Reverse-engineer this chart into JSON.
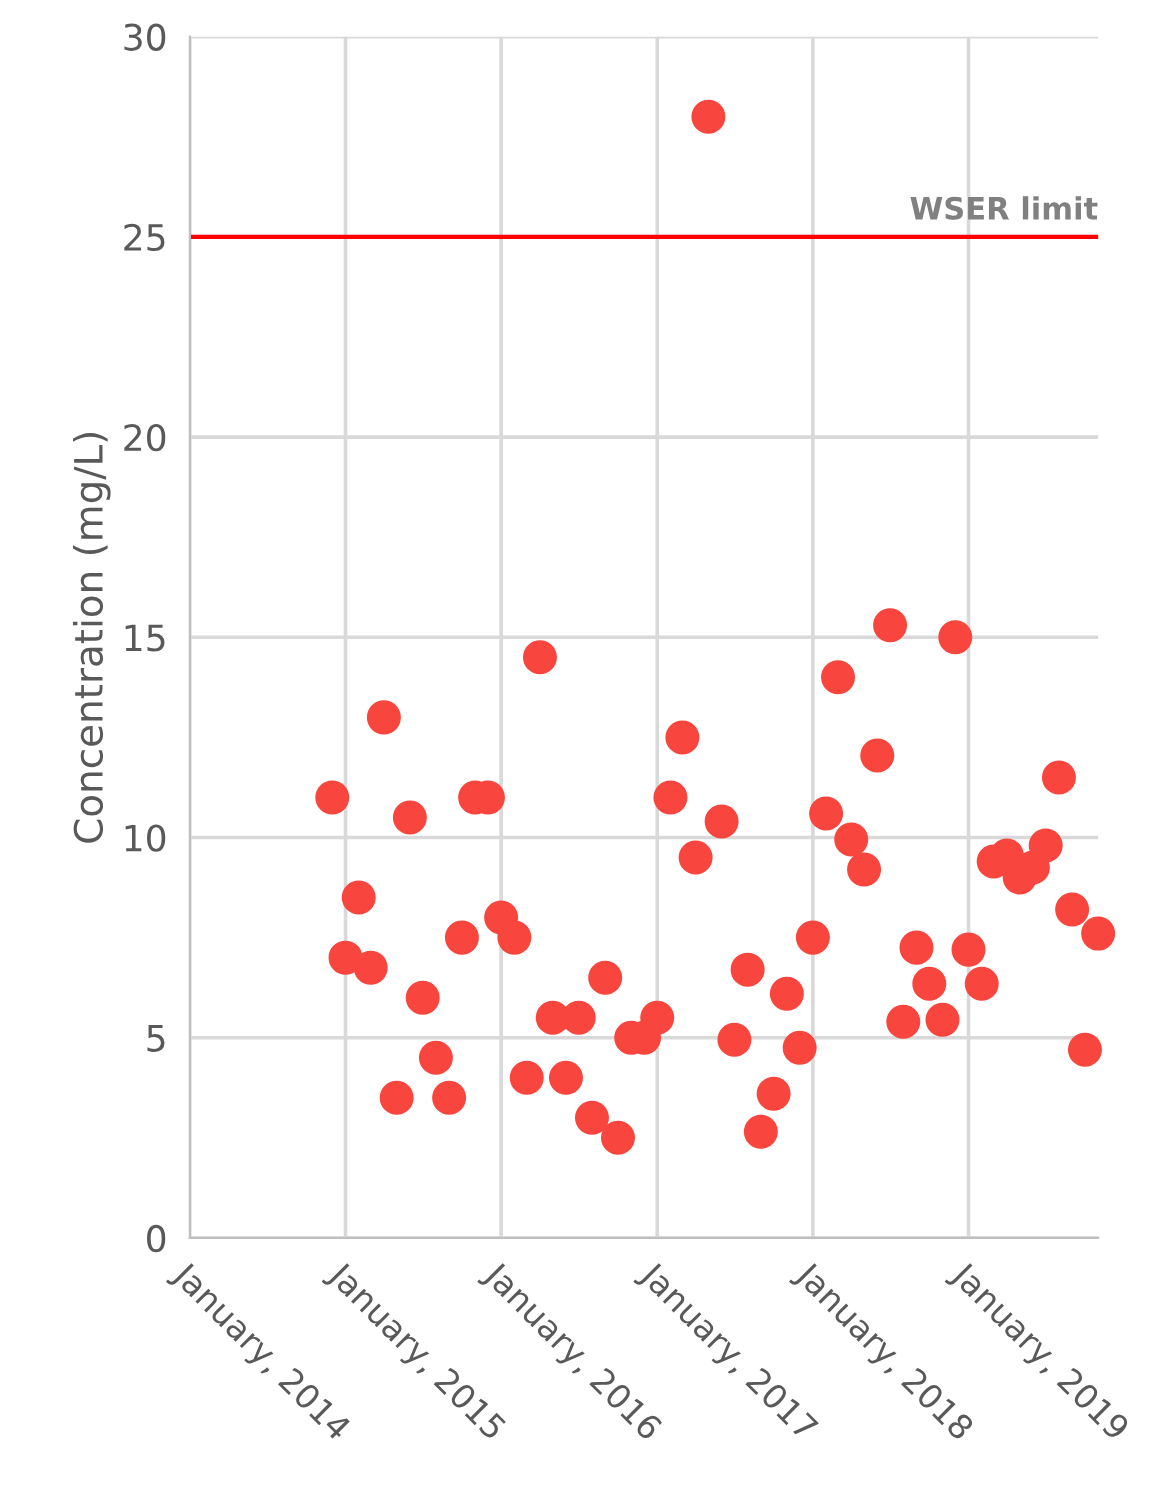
{
  "chart_data": {
    "type": "scatter",
    "ylabel": "Concentration (mg/L)",
    "x": [
      "2014-12",
      "2015-01",
      "2015-02",
      "2015-03",
      "2015-04",
      "2015-05",
      "2015-06",
      "2015-07",
      "2015-08",
      "2015-09",
      "2015-10",
      "2015-11",
      "2015-12",
      "2016-01",
      "2016-02",
      "2016-03",
      "2016-04",
      "2016-05",
      "2016-06",
      "2016-07",
      "2016-08",
      "2016-09",
      "2016-10",
      "2016-11",
      "2016-12",
      "2017-01",
      "2017-02",
      "2017-03",
      "2017-04",
      "2017-05",
      "2017-06",
      "2017-07",
      "2017-08",
      "2017-09",
      "2017-10",
      "2017-11",
      "2017-12",
      "2018-01",
      "2018-02",
      "2018-03",
      "2018-04",
      "2018-05",
      "2018-06",
      "2018-07",
      "2018-08",
      "2018-09",
      "2018-10",
      "2018-11",
      "2018-12",
      "2019-01",
      "2019-02",
      "2019-03",
      "2019-04",
      "2019-05",
      "2019-06",
      "2019-07",
      "2019-08",
      "2019-09",
      "2019-10",
      "2019-11"
    ],
    "series": [
      {
        "color": "#f8463f",
        "values": [
          11.0,
          7.0,
          8.5,
          6.75,
          13.0,
          3.5,
          10.5,
          6.0,
          4.5,
          3.5,
          7.5,
          11.0,
          11.0,
          8.0,
          7.5,
          4.0,
          14.5,
          5.5,
          4.0,
          5.5,
          3.0,
          6.5,
          2.5,
          5.0,
          5.0,
          5.5,
          11.0,
          12.5,
          9.5,
          28.0,
          10.4,
          4.95,
          6.7,
          2.65,
          3.6,
          6.1,
          4.75,
          7.5,
          10.6,
          14.0,
          9.95,
          9.2,
          12.05,
          15.3,
          5.4,
          7.25,
          6.35,
          5.45,
          15.0,
          7.2,
          6.35,
          9.4,
          9.55,
          9.0,
          9.25,
          9.8,
          11.5,
          8.2,
          4.7,
          7.6
        ]
      }
    ],
    "xlim": [
      "2014-01",
      "2019-11"
    ],
    "xticks": [
      {
        "value": "2014-01",
        "label": "January, 2014"
      },
      {
        "value": "2015-01",
        "label": "January, 2015"
      },
      {
        "value": "2016-01",
        "label": "January, 2016"
      },
      {
        "value": "2017-01",
        "label": "January, 2017"
      },
      {
        "value": "2018-01",
        "label": "January, 2018"
      },
      {
        "value": "2019-01",
        "label": "January, 2019"
      }
    ],
    "ylim": [
      0,
      30
    ],
    "yticks": [
      0,
      5,
      10,
      15,
      20,
      25,
      30
    ],
    "grid": true,
    "marker": "circle",
    "legend": false,
    "ref_lines": [
      {
        "axis": "y",
        "value": 25,
        "label": "WSER limit",
        "color": "#ff0000",
        "line_style": "solid"
      }
    ]
  }
}
